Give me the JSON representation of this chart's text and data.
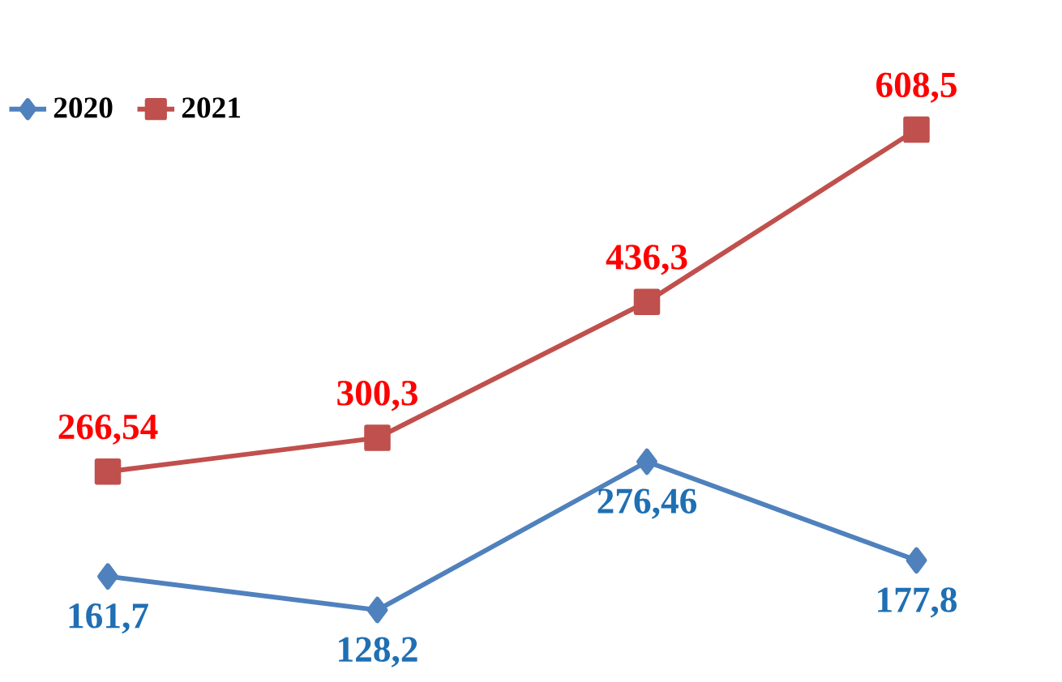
{
  "chart_data": {
    "type": "line",
    "categories": [
      null,
      null,
      null,
      null
    ],
    "legend": "top left",
    "series": [
      {
        "name": "2020",
        "color": "#4f81bd",
        "marker": "diamond",
        "values": [
          161.7,
          128.2,
          276.46,
          177.8
        ],
        "value_labels": [
          "161,7",
          "128,2",
          "276,46",
          "177,8"
        ]
      },
      {
        "name": "2021",
        "color": "#c0504d",
        "marker": "square",
        "values": [
          266.54,
          300.3,
          436.3,
          608.5
        ],
        "value_labels": [
          "266,54",
          "300,3",
          "436,3",
          "608,5"
        ]
      }
    ]
  }
}
